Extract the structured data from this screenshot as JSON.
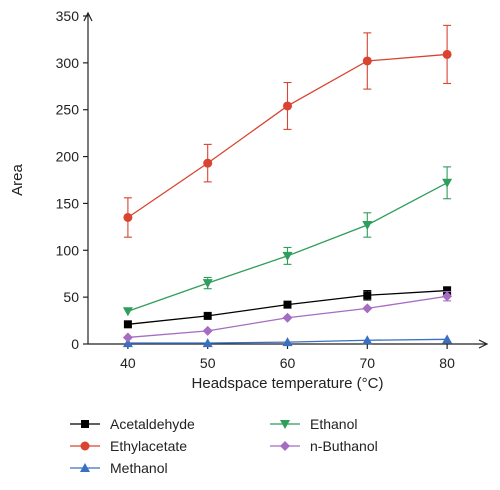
{
  "chart_data": {
    "type": "line",
    "xlabel": "Headspace temperature (°C)",
    "ylabel": "Area",
    "x": [
      40,
      50,
      60,
      70,
      80
    ],
    "xticks": [
      "40",
      "50",
      "60",
      "70",
      "80"
    ],
    "yticks": [
      "0",
      "50",
      "100",
      "150",
      "200",
      "250",
      "300",
      "350"
    ],
    "xlim": [
      35,
      85
    ],
    "ylim": [
      0,
      350
    ],
    "grid": false,
    "legend_position": "bottom",
    "series": [
      {
        "name": "Acetaldehyde",
        "marker": "square",
        "color": "#000000",
        "values": [
          21,
          30,
          42,
          52,
          57
        ],
        "errors": [
          0,
          0,
          0,
          5,
          4
        ]
      },
      {
        "name": "Ethylacetate",
        "marker": "circle",
        "color": "#d9432f",
        "values": [
          135,
          193,
          254,
          302,
          309
        ],
        "errors": [
          21,
          20,
          25,
          30,
          31
        ]
      },
      {
        "name": "Methanol",
        "marker": "triangle-up",
        "color": "#3b6fc1",
        "values": [
          1,
          1,
          2,
          4,
          5
        ],
        "errors": [
          0,
          0,
          0,
          0,
          0
        ]
      },
      {
        "name": "Ethanol",
        "marker": "triangle-down",
        "color": "#2e9e5b",
        "values": [
          35,
          65,
          94,
          127,
          172
        ],
        "errors": [
          0,
          6,
          9,
          13,
          17
        ]
      },
      {
        "name": "n-Buthanol",
        "marker": "diamond",
        "color": "#a56cc1",
        "values": [
          7,
          14,
          28,
          38,
          51
        ],
        "errors": [
          0,
          0,
          0,
          0,
          5
        ]
      }
    ]
  }
}
